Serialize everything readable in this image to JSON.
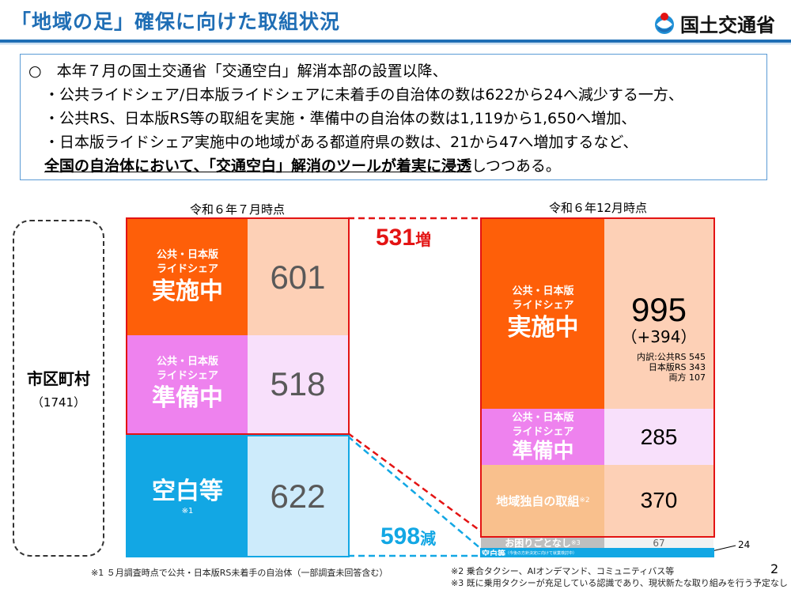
{
  "header": {
    "title": "「地域の足」確保に向けた取組状況",
    "logo_text": "国土交通省"
  },
  "summary": {
    "line1": "○　本年７月の国土交通省「交通空白」解消本部の設置以降、",
    "line2": "・公共ライドシェア/日本版ライドシェアに未着手の自治体の数は622から24へ減少する一方、",
    "line3": "・公共RS、日本版RS等の取組を実施・準備中の自治体の数は1,119から1,650へ増加、",
    "line4": "・日本版ライドシェア実施中の地域がある都道府県の数は、21から47へ増加するなど、",
    "line5_underlined": "全国の自治体において、「交通空白」解消のツールが着実に浸透",
    "line5_tail": "しつつある。"
  },
  "left": {
    "date_label": "令和６年７月時点",
    "category_label": "市区町村",
    "category_count": "（1741）",
    "implementing": {
      "sub1": "公共・日本版",
      "sub2": "ライドシェア",
      "main": "実施中",
      "value": "601"
    },
    "preparing": {
      "sub1": "公共・日本版",
      "sub2": "ライドシェア",
      "main": "準備中",
      "value": "518"
    },
    "blank": {
      "main": "空白等",
      "note": "※1",
      "value": "622"
    }
  },
  "right": {
    "date_label": "令和６年12月時点",
    "implementing": {
      "sub1": "公共・日本版",
      "sub2": "ライドシェア",
      "main": "実施中",
      "value": "995",
      "delta": "（+394）",
      "breakdown_title": "内訳:公共RS",
      "breakdown": [
        {
          "label": "内訳:公共RS",
          "value": "545"
        },
        {
          "label": "日本版RS",
          "value": "343"
        },
        {
          "label": "両方",
          "value": "107"
        }
      ]
    },
    "preparing": {
      "sub1": "公共・日本版",
      "sub2": "ライドシェア",
      "main": "準備中",
      "value": "285"
    },
    "regional": {
      "main": "地域独自の取組",
      "note": "※2",
      "value": "370"
    },
    "trouble": {
      "main": "お困りごとなし",
      "note": "※3",
      "value": "67"
    },
    "blank": {
      "main": "空白等",
      "note": "（今後の方針決定に向けて就業検討中）",
      "value": "24"
    }
  },
  "annotations": {
    "increase_num": "531",
    "increase_unit": "増",
    "decrease_num": "598",
    "decrease_unit": "減"
  },
  "footnotes": {
    "note1": "※1 ５月調査時点で公共・日本版RS未着手の自治体（一部調査未回答含む）",
    "note2": "※2 乗合タクシー、AIオンデマンド、コミュニティバス等",
    "note3": "※3 既に乗用タクシーが充足している認識であり、現状新たな取り組みを行う予定なし"
  },
  "page_number": "2",
  "colors": {
    "orange": "#fe5f09",
    "orange_light": "#fdd0b6",
    "pink": "#ee82ee",
    "pink_light": "#f8e0fb",
    "blue": "#12a7e4",
    "blue_light": "#cdebfb",
    "peach": "#f9c08d",
    "red": "#e31313",
    "title_blue": "#1f6eb5"
  }
}
